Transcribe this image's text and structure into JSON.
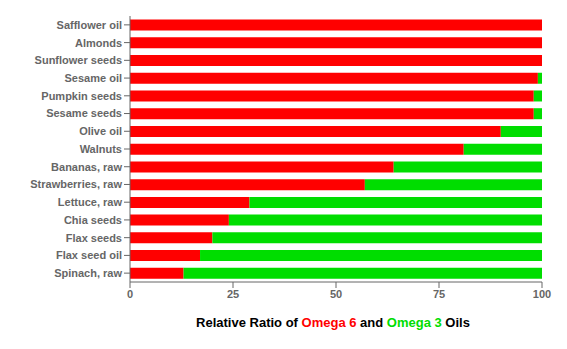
{
  "chart_data": {
    "type": "bar",
    "orientation": "horizontal",
    "stacked": true,
    "x_label": "Relative Ratio of Omega 6 and Omega 3 Oils",
    "categories": [
      "Spinach, raw",
      "Flax seed oil",
      "Flax seeds",
      "Chia seeds",
      "Lettuce, raw",
      "Strawberries, raw",
      "Bananas, raw",
      "Walnuts",
      "Olive oil",
      "Sesame seeds",
      "Pumpkin seeds",
      "Sesame oil",
      "Sunflower seeds",
      "Almonds",
      "Safflower oil"
    ],
    "series": [
      {
        "name": "Omega 6",
        "color": "#ff0000",
        "values": [
          13,
          17,
          20,
          24,
          29,
          57,
          64,
          81,
          90,
          98,
          98,
          99,
          100,
          100,
          100
        ]
      },
      {
        "name": "Omega 3",
        "color": "#00dd00",
        "values": [
          87,
          83,
          80,
          76,
          71,
          43,
          36,
          19,
          10,
          2,
          2,
          1,
          0,
          0,
          0
        ]
      }
    ],
    "xlim": [
      0,
      100
    ],
    "xticks": [
      0,
      25,
      50,
      75,
      100
    ],
    "grid": false
  }
}
